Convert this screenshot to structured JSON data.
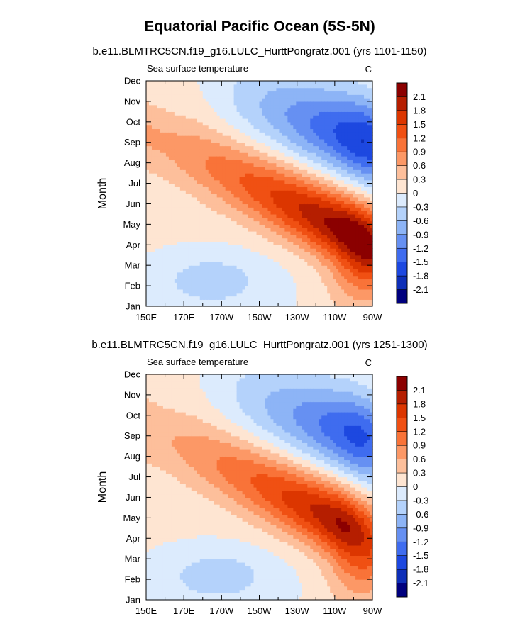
{
  "figure": {
    "title": "Equatorial Pacific Ocean (5S-5N)"
  },
  "chart_data": [
    {
      "type": "heatmap",
      "subtitle": "b.e11.BLMTRC5CN.f19_g16.LULC_HurttPongratz.001 (yrs 1101-1150)",
      "variable_label": "Sea surface temperature",
      "units_label": "C",
      "ylabel": "Month",
      "xlabel": "",
      "x_ticks": [
        "150E",
        "170E",
        "170W",
        "150W",
        "130W",
        "110W",
        "90W"
      ],
      "x_tick_values": [
        150,
        170,
        190,
        210,
        230,
        250,
        270
      ],
      "xlim": [
        150,
        270
      ],
      "y_ticks": [
        "Jan",
        "Feb",
        "Mar",
        "Apr",
        "May",
        "Jun",
        "Jul",
        "Aug",
        "Sep",
        "Oct",
        "Nov",
        "Dec"
      ],
      "y_tick_values": [
        1,
        2,
        3,
        4,
        5,
        6,
        7,
        8,
        9,
        10,
        11,
        12
      ],
      "ylim": [
        1,
        12
      ],
      "colorbar_levels": [
        -2.1,
        -1.8,
        -1.5,
        -1.2,
        -0.9,
        -0.6,
        -0.3,
        0,
        0.3,
        0.6,
        0.9,
        1.2,
        1.5,
        1.8,
        2.1
      ],
      "colorbar_labels": [
        "2.1",
        "1.8",
        "1.5",
        "1.2",
        "0.9",
        "0.6",
        "0.3",
        "0",
        "-0.3",
        "-0.6",
        "-0.9",
        "-1.2",
        "-1.5",
        "-1.8",
        "-2.1"
      ],
      "colorbar_colors": [
        "#8b0000",
        "#b51e00",
        "#dc3600",
        "#f05013",
        "#f97338",
        "#fc9866",
        "#fdbf9b",
        "#fee5d2",
        "#dcebfd",
        "#b4d2fb",
        "#8db4f6",
        "#6690f2",
        "#3f6cef",
        "#1d48e0",
        "#0e2fb8",
        "#00007e"
      ],
      "field_model": {
        "background": 0.1,
        "features": [
          {
            "kind": "positive-tongue",
            "peak": 2.2,
            "peak_lon": 258,
            "peak_month": 4.6
          },
          {
            "kind": "negative-core",
            "peak": -1.7,
            "peak_lon": 255,
            "peak_month": 9.4
          },
          {
            "kind": "negative-winter-west",
            "peak": -0.5,
            "peak_lon": 185,
            "peak_month": 2.3
          }
        ]
      }
    },
    {
      "type": "heatmap",
      "subtitle": "b.e11.BLMTRC5CN.f19_g16.LULC_HurttPongratz.001 (yrs 1251-1300)",
      "variable_label": "Sea surface temperature",
      "units_label": "C",
      "ylabel": "Month",
      "xlabel": "",
      "x_ticks": [
        "150E",
        "170E",
        "170W",
        "150W",
        "130W",
        "110W",
        "90W"
      ],
      "x_tick_values": [
        150,
        170,
        190,
        210,
        230,
        250,
        270
      ],
      "xlim": [
        150,
        270
      ],
      "y_ticks": [
        "Jan",
        "Feb",
        "Mar",
        "Apr",
        "May",
        "Jun",
        "Jul",
        "Aug",
        "Sep",
        "Oct",
        "Nov",
        "Dec"
      ],
      "y_tick_values": [
        1,
        2,
        3,
        4,
        5,
        6,
        7,
        8,
        9,
        10,
        11,
        12
      ],
      "ylim": [
        1,
        12
      ],
      "colorbar_levels": [
        -2.1,
        -1.8,
        -1.5,
        -1.2,
        -0.9,
        -0.6,
        -0.3,
        0,
        0.3,
        0.6,
        0.9,
        1.2,
        1.5,
        1.8,
        2.1
      ],
      "colorbar_labels": [
        "2.1",
        "1.8",
        "1.5",
        "1.2",
        "0.9",
        "0.6",
        "0.3",
        "0",
        "-0.3",
        "-0.6",
        "-0.9",
        "-1.2",
        "-1.5",
        "-1.8",
        "-2.1"
      ],
      "colorbar_colors": [
        "#8b0000",
        "#b51e00",
        "#dc3600",
        "#f05013",
        "#f97338",
        "#fc9866",
        "#fdbf9b",
        "#fee5d2",
        "#dcebfd",
        "#b4d2fb",
        "#8db4f6",
        "#6690f2",
        "#3f6cef",
        "#1d48e0",
        "#0e2fb8",
        "#00007e"
      ],
      "field_model": {
        "background": 0.1,
        "features": [
          {
            "kind": "positive-tongue",
            "peak": 1.9,
            "peak_lon": 250,
            "peak_month": 4.9
          },
          {
            "kind": "negative-core",
            "peak": -1.5,
            "peak_lon": 252,
            "peak_month": 9.3
          },
          {
            "kind": "negative-winter-west",
            "peak": -0.5,
            "peak_lon": 188,
            "peak_month": 2.2
          }
        ]
      }
    }
  ]
}
